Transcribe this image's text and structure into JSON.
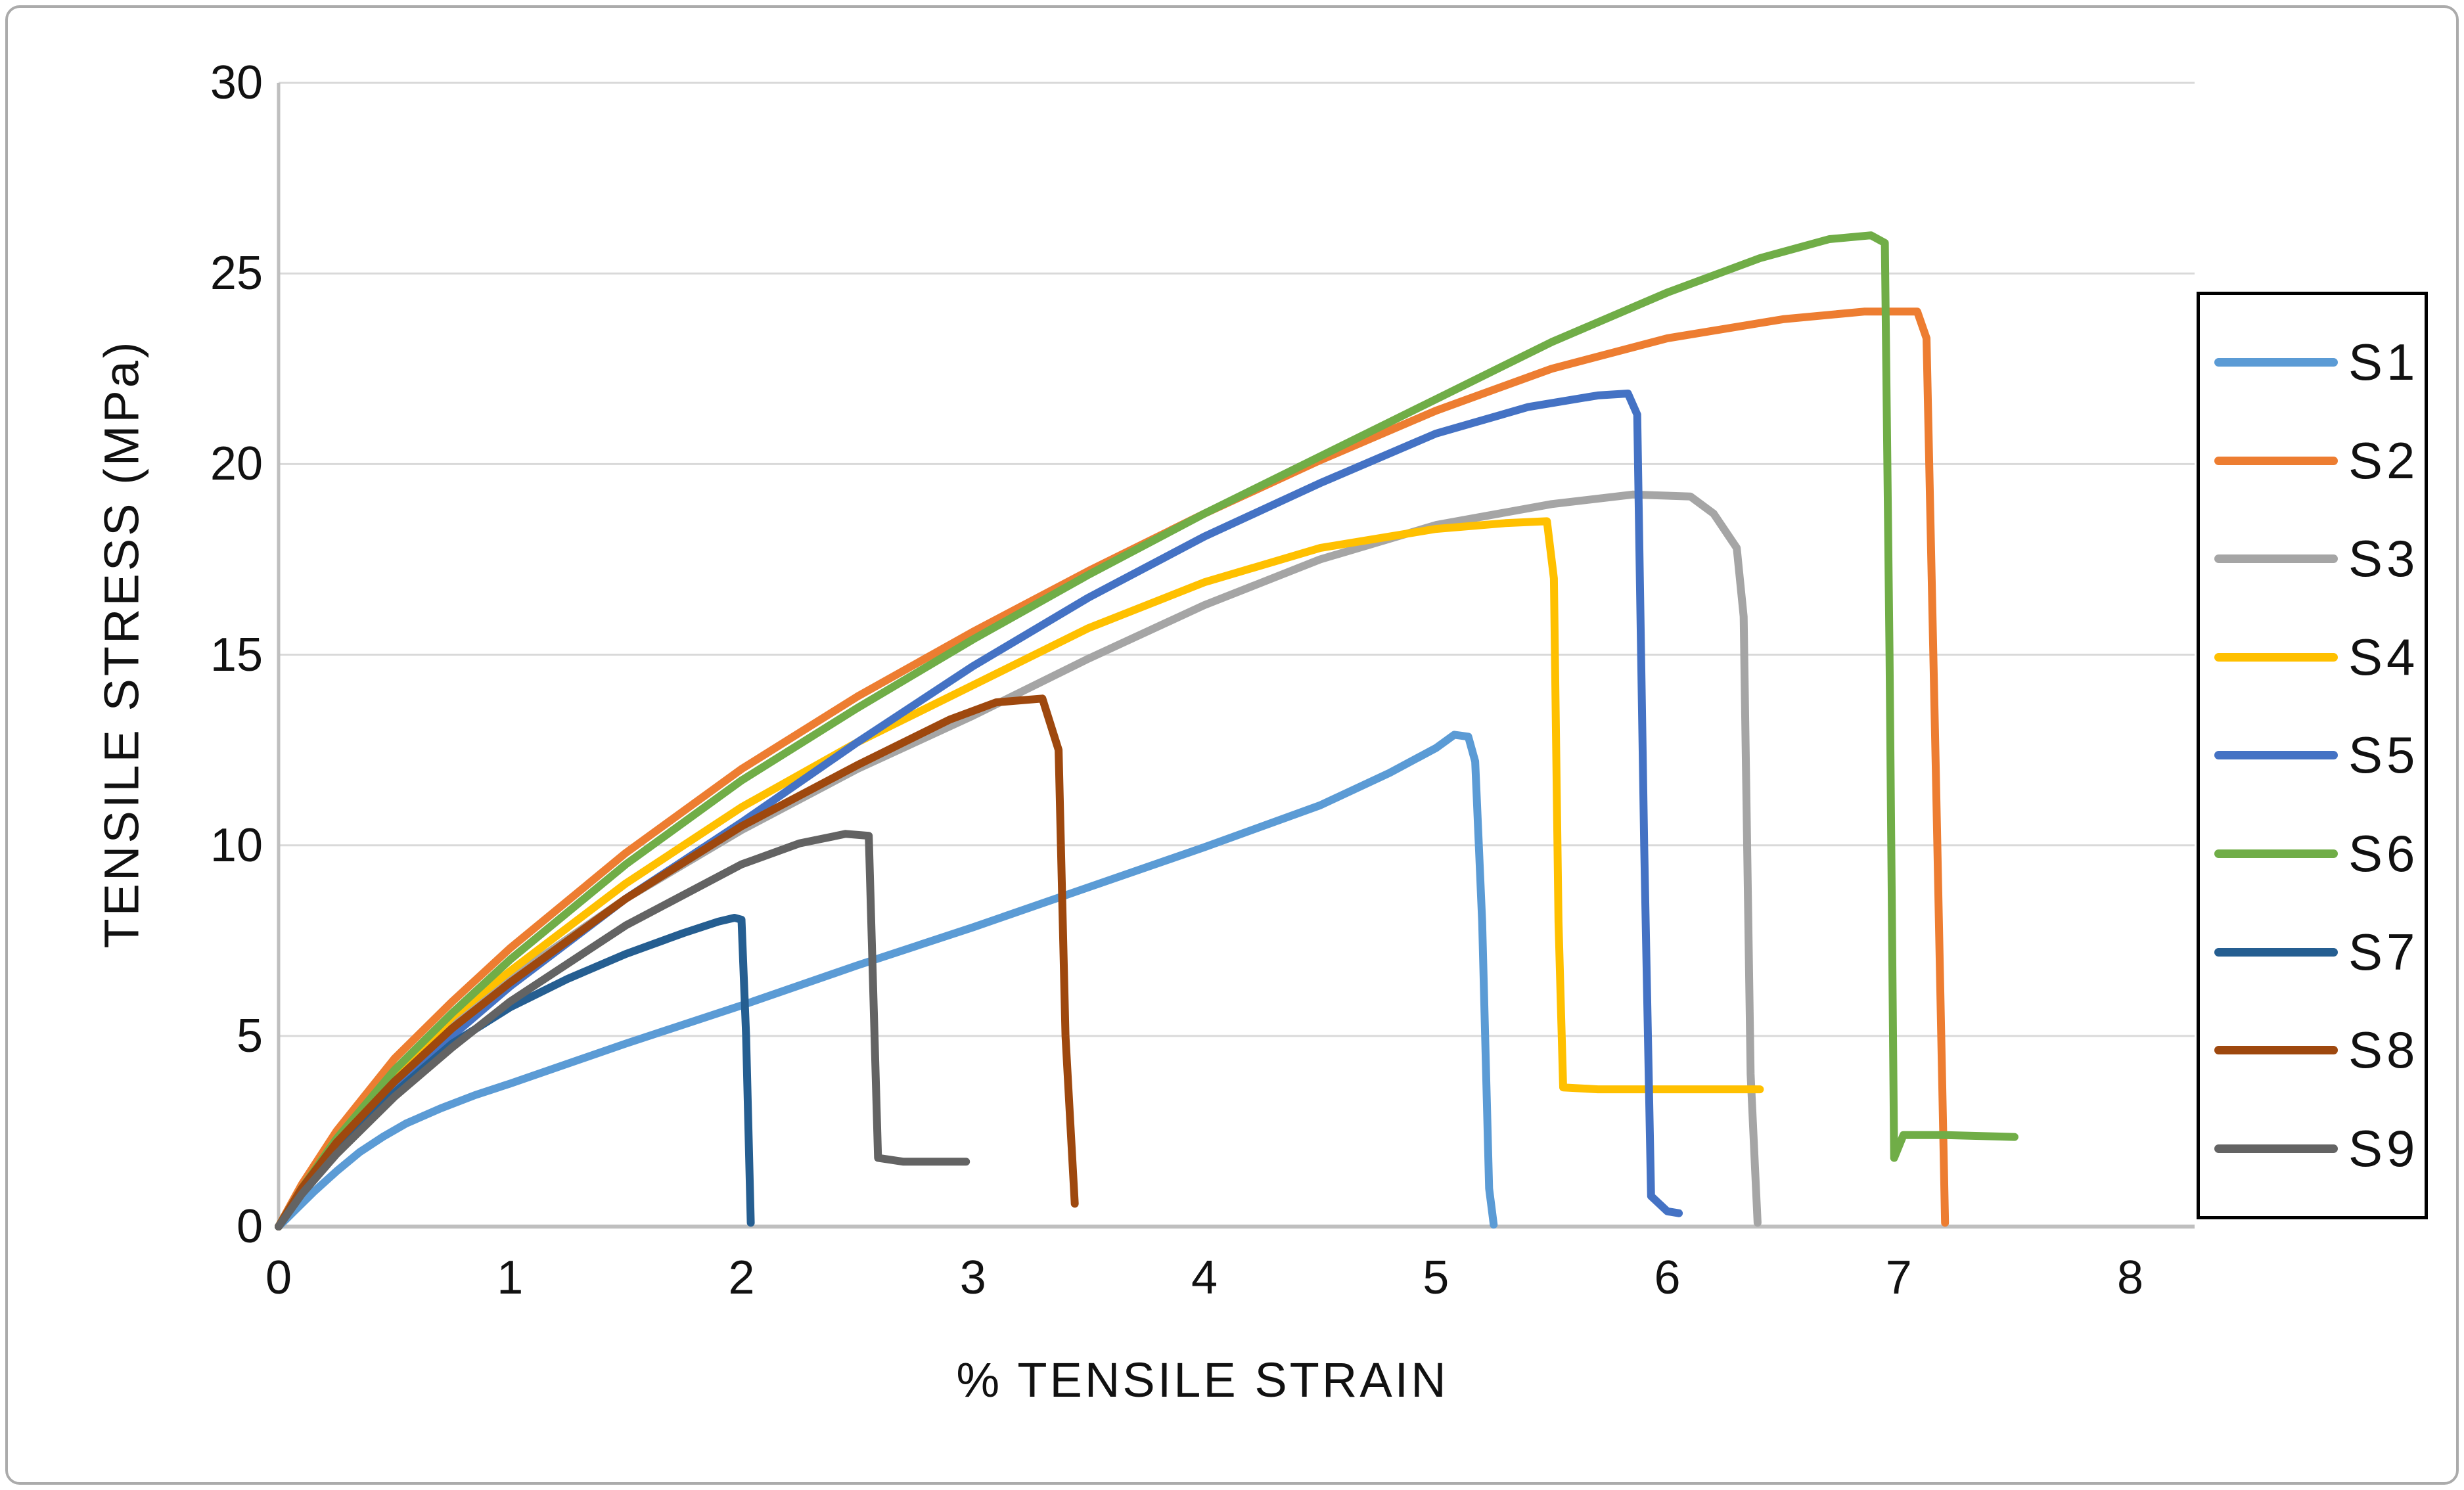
{
  "chart_data": {
    "type": "line",
    "title": "",
    "xlabel": "% TENSILE STRAIN",
    "ylabel": "TENSILE STRESS (MPa)",
    "xlim": [
      0,
      8
    ],
    "ylim": [
      0,
      30
    ],
    "x_ticks": [
      0,
      1,
      2,
      3,
      4,
      5,
      6,
      7,
      8
    ],
    "y_ticks": [
      0,
      5,
      10,
      15,
      20,
      25,
      30
    ],
    "grid": "horizontal",
    "grid_color": "#d9d9d9",
    "axis_color": "#bfbfbf",
    "legend_position": "right",
    "series": [
      {
        "name": "S1",
        "color": "#5B9BD5",
        "points": [
          [
            0,
            0
          ],
          [
            0.05,
            0.3
          ],
          [
            0.15,
            0.9
          ],
          [
            0.25,
            1.45
          ],
          [
            0.35,
            1.95
          ],
          [
            0.45,
            2.35
          ],
          [
            0.55,
            2.7
          ],
          [
            0.7,
            3.1
          ],
          [
            0.85,
            3.45
          ],
          [
            1.0,
            3.75
          ],
          [
            1.5,
            4.8
          ],
          [
            2.0,
            5.8
          ],
          [
            2.5,
            6.85
          ],
          [
            3.0,
            7.85
          ],
          [
            3.5,
            8.9
          ],
          [
            4.0,
            9.95
          ],
          [
            4.5,
            11.05
          ],
          [
            4.8,
            11.9
          ],
          [
            5.0,
            12.55
          ],
          [
            5.08,
            12.9
          ],
          [
            5.14,
            12.85
          ],
          [
            5.17,
            12.2
          ],
          [
            5.2,
            8.0
          ],
          [
            5.23,
            1.0
          ],
          [
            5.25,
            0.05
          ]
        ]
      },
      {
        "name": "S2",
        "color": "#ED7D31",
        "points": [
          [
            0,
            0
          ],
          [
            0.1,
            1.1
          ],
          [
            0.25,
            2.5
          ],
          [
            0.5,
            4.4
          ],
          [
            0.75,
            5.9
          ],
          [
            1.0,
            7.3
          ],
          [
            1.5,
            9.8
          ],
          [
            2.0,
            12.0
          ],
          [
            2.5,
            13.9
          ],
          [
            3.0,
            15.6
          ],
          [
            3.5,
            17.2
          ],
          [
            4.0,
            18.7
          ],
          [
            4.5,
            20.1
          ],
          [
            5.0,
            21.4
          ],
          [
            5.5,
            22.5
          ],
          [
            6.0,
            23.3
          ],
          [
            6.5,
            23.8
          ],
          [
            6.85,
            24.0
          ],
          [
            7.08,
            24.0
          ],
          [
            7.12,
            23.3
          ],
          [
            7.16,
            12.0
          ],
          [
            7.2,
            0.1
          ]
        ]
      },
      {
        "name": "S3",
        "color": "#A5A5A5",
        "points": [
          [
            0,
            0
          ],
          [
            0.1,
            1.0
          ],
          [
            0.25,
            2.2
          ],
          [
            0.5,
            3.9
          ],
          [
            0.75,
            5.3
          ],
          [
            1.0,
            6.5
          ],
          [
            1.5,
            8.6
          ],
          [
            2.0,
            10.4
          ],
          [
            2.5,
            12.0
          ],
          [
            3.0,
            13.4
          ],
          [
            3.5,
            14.9
          ],
          [
            4.0,
            16.3
          ],
          [
            4.5,
            17.5
          ],
          [
            5.0,
            18.4
          ],
          [
            5.5,
            18.95
          ],
          [
            5.85,
            19.2
          ],
          [
            6.1,
            19.15
          ],
          [
            6.2,
            18.7
          ],
          [
            6.3,
            17.8
          ],
          [
            6.33,
            16.0
          ],
          [
            6.36,
            4.0
          ],
          [
            6.39,
            0.1
          ]
        ]
      },
      {
        "name": "S4",
        "color": "#FFC000",
        "points": [
          [
            0,
            0
          ],
          [
            0.1,
            1.0
          ],
          [
            0.25,
            2.3
          ],
          [
            0.5,
            4.0
          ],
          [
            0.75,
            5.5
          ],
          [
            1.0,
            6.7
          ],
          [
            1.5,
            9.0
          ],
          [
            2.0,
            11.0
          ],
          [
            2.5,
            12.7
          ],
          [
            3.0,
            14.2
          ],
          [
            3.5,
            15.7
          ],
          [
            4.0,
            16.9
          ],
          [
            4.5,
            17.8
          ],
          [
            5.0,
            18.3
          ],
          [
            5.3,
            18.45
          ],
          [
            5.48,
            18.5
          ],
          [
            5.51,
            17.0
          ],
          [
            5.53,
            8.0
          ],
          [
            5.55,
            3.65
          ],
          [
            5.7,
            3.6
          ],
          [
            6.4,
            3.6
          ]
        ]
      },
      {
        "name": "S5",
        "color": "#4472C4",
        "points": [
          [
            0,
            0
          ],
          [
            0.1,
            0.9
          ],
          [
            0.25,
            2.0
          ],
          [
            0.5,
            3.6
          ],
          [
            0.75,
            5.0
          ],
          [
            1.0,
            6.3
          ],
          [
            1.5,
            8.6
          ],
          [
            2.0,
            10.6
          ],
          [
            2.5,
            12.7
          ],
          [
            3.0,
            14.7
          ],
          [
            3.5,
            16.5
          ],
          [
            4.0,
            18.1
          ],
          [
            4.5,
            19.5
          ],
          [
            5.0,
            20.8
          ],
          [
            5.4,
            21.5
          ],
          [
            5.7,
            21.8
          ],
          [
            5.83,
            21.85
          ],
          [
            5.87,
            21.3
          ],
          [
            5.9,
            10.0
          ],
          [
            5.93,
            0.8
          ],
          [
            6.0,
            0.4
          ],
          [
            6.05,
            0.35
          ]
        ]
      },
      {
        "name": "S6",
        "color": "#70AD47",
        "points": [
          [
            0,
            0
          ],
          [
            0.1,
            1.0
          ],
          [
            0.25,
            2.3
          ],
          [
            0.5,
            4.1
          ],
          [
            0.75,
            5.6
          ],
          [
            1.0,
            7.0
          ],
          [
            1.5,
            9.5
          ],
          [
            2.0,
            11.7
          ],
          [
            2.5,
            13.6
          ],
          [
            3.0,
            15.4
          ],
          [
            3.5,
            17.1
          ],
          [
            4.0,
            18.7
          ],
          [
            4.5,
            20.2
          ],
          [
            5.0,
            21.7
          ],
          [
            5.5,
            23.2
          ],
          [
            6.0,
            24.5
          ],
          [
            6.4,
            25.4
          ],
          [
            6.7,
            25.9
          ],
          [
            6.88,
            26.0
          ],
          [
            6.94,
            25.8
          ],
          [
            6.96,
            15.0
          ],
          [
            6.98,
            1.8
          ],
          [
            7.02,
            2.4
          ],
          [
            7.2,
            2.4
          ],
          [
            7.5,
            2.35
          ]
        ]
      },
      {
        "name": "S7",
        "color": "#255E91",
        "points": [
          [
            0,
            0
          ],
          [
            0.1,
            0.9
          ],
          [
            0.25,
            2.0
          ],
          [
            0.5,
            3.5
          ],
          [
            0.75,
            4.8
          ],
          [
            1.0,
            5.75
          ],
          [
            1.25,
            6.5
          ],
          [
            1.5,
            7.15
          ],
          [
            1.75,
            7.7
          ],
          [
            1.9,
            8.0
          ],
          [
            1.97,
            8.1
          ],
          [
            2.0,
            8.05
          ],
          [
            2.02,
            5.0
          ],
          [
            2.04,
            0.1
          ]
        ]
      },
      {
        "name": "S8",
        "color": "#9E480E",
        "points": [
          [
            0,
            0
          ],
          [
            0.1,
            1.0
          ],
          [
            0.25,
            2.2
          ],
          [
            0.5,
            3.8
          ],
          [
            0.75,
            5.2
          ],
          [
            1.0,
            6.4
          ],
          [
            1.5,
            8.6
          ],
          [
            2.0,
            10.5
          ],
          [
            2.5,
            12.1
          ],
          [
            2.9,
            13.3
          ],
          [
            3.1,
            13.75
          ],
          [
            3.3,
            13.85
          ],
          [
            3.37,
            12.5
          ],
          [
            3.4,
            5.0
          ],
          [
            3.44,
            0.6
          ]
        ]
      },
      {
        "name": "S9",
        "color": "#636363",
        "points": [
          [
            0,
            0
          ],
          [
            0.1,
            0.85
          ],
          [
            0.25,
            1.9
          ],
          [
            0.5,
            3.4
          ],
          [
            0.75,
            4.7
          ],
          [
            1.0,
            5.9
          ],
          [
            1.5,
            7.9
          ],
          [
            2.0,
            9.5
          ],
          [
            2.25,
            10.05
          ],
          [
            2.45,
            10.3
          ],
          [
            2.55,
            10.25
          ],
          [
            2.57,
            6.0
          ],
          [
            2.59,
            1.8
          ],
          [
            2.7,
            1.7
          ],
          [
            2.97,
            1.7
          ]
        ]
      }
    ]
  }
}
